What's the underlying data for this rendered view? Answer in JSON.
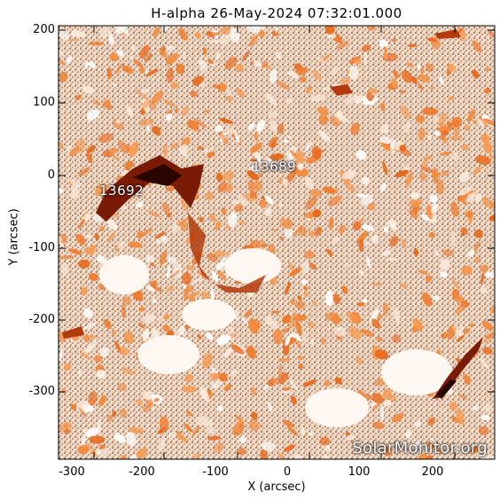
{
  "image": {
    "title": "H-alpha 26-May-2024 07:32:01.000",
    "xlabel": "X (arcsec)",
    "ylabel": "Y (arcsec)",
    "x_ticks": [
      "-300",
      "-200",
      "-100",
      "0",
      "100",
      "200"
    ],
    "y_ticks": [
      "200",
      "100",
      "0",
      "-100",
      "-200",
      "-300"
    ],
    "watermark": "SolarMonitor.org",
    "regions": [
      {
        "label": "13692"
      },
      {
        "label": "13689"
      }
    ],
    "colors": {
      "background": "#ffffff",
      "light": "#fbe6d6",
      "mid": "#f2863a",
      "dark": "#7a1b05",
      "black": "#000000"
    }
  }
}
